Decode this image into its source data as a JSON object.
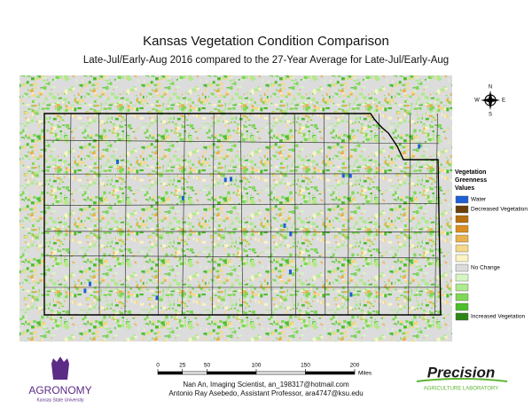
{
  "header": {
    "title": "Kansas Vegetation Condition Comparison",
    "subtitle": "Late-Jul/Early-Aug 2016 compared to the 27-Year Average for Late-Jul/Early-Aug"
  },
  "compass": {
    "north": "N",
    "south": "S",
    "east": "E",
    "west": "W"
  },
  "legend": {
    "title": [
      "Vegetation",
      "Greenness",
      "Values"
    ],
    "items": [
      {
        "color": "#1f5fd4",
        "label": "Water"
      },
      {
        "color": "#6b3f0c",
        "label": "Decreased Vegetation"
      },
      {
        "color": "#b8700f"
      },
      {
        "color": "#d9901f"
      },
      {
        "color": "#e9b24f"
      },
      {
        "color": "#f4d88c"
      },
      {
        "color": "#fcf3c4"
      },
      {
        "color": "#dcdcdc",
        "label": "No Change"
      },
      {
        "color": "#d6f5c4"
      },
      {
        "color": "#aeea8e"
      },
      {
        "color": "#7ed856"
      },
      {
        "color": "#4bbf2b"
      },
      {
        "color": "#2d8517",
        "label": "Increased Vegetation"
      }
    ]
  },
  "scale_bar": {
    "ticks": [
      0,
      25,
      50,
      100,
      150,
      200
    ],
    "unit": "Miles"
  },
  "credits": [
    "Nan An, Imaging Scientist, an_198317@hotmail.com",
    "Antonio Ray Asebedo, Assistant Professor, ara4747@ksu.edu"
  ],
  "logos": {
    "left": {
      "name": "AGRONOMY",
      "university": "Kansas State University"
    },
    "right": {
      "name": "Precision",
      "lab": "Agriculture Laboratory"
    }
  }
}
